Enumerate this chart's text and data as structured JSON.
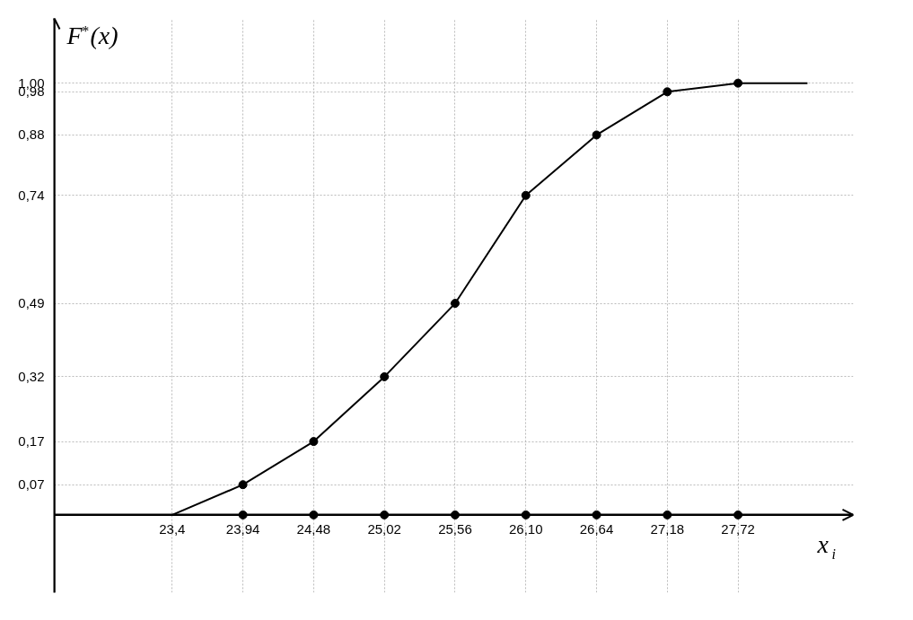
{
  "chart_data": {
    "type": "line",
    "xlabel": "x$_{i}$",
    "ylabel": "F$^{*}$(x)",
    "series": [
      {
        "color": "#000000",
        "marker": "none",
        "x": [
          22.5,
          23.4,
          23.94,
          24.48,
          25.02,
          25.56,
          26.1,
          26.64,
          27.18,
          27.72,
          28.25
        ],
        "values": [
          0,
          0,
          0.07,
          0.17,
          0.32,
          0.49,
          0.74,
          0.88,
          0.98,
          1.0,
          1.0
        ]
      },
      {
        "type": "scatter",
        "color": "#000000",
        "marker": "circle",
        "x": [
          23.94,
          24.48,
          25.02,
          25.56,
          26.1,
          26.64,
          27.18,
          27.72
        ],
        "values": [
          0.07,
          0.17,
          0.32,
          0.49,
          0.74,
          0.88,
          0.98,
          1.0
        ]
      },
      {
        "type": "scatter",
        "color": "#000000",
        "marker": "circle",
        "x": [
          23.94,
          24.48,
          25.02,
          25.56,
          26.1,
          26.64,
          27.18,
          27.72
        ],
        "values": [
          0,
          0,
          0,
          0,
          0,
          0,
          0,
          0
        ]
      }
    ],
    "xlim": [
      22.5,
      28.6
    ],
    "ylim": [
      -0.18,
      1.15
    ],
    "xticks": [
      {
        "value": 23.4,
        "label": "23,4"
      },
      {
        "value": 23.94,
        "label": "23,94"
      },
      {
        "value": 24.48,
        "label": "24,48"
      },
      {
        "value": 25.02,
        "label": "25,02"
      },
      {
        "value": 25.56,
        "label": "25,56"
      },
      {
        "value": 26.1,
        "label": "26,10"
      },
      {
        "value": 26.64,
        "label": "26,64"
      },
      {
        "value": 27.18,
        "label": "27,18"
      },
      {
        "value": 27.72,
        "label": "27,72"
      }
    ],
    "yticks": [
      {
        "value": 0.07,
        "label": "0,07"
      },
      {
        "value": 0.17,
        "label": "0,17"
      },
      {
        "value": 0.32,
        "label": "0,32"
      },
      {
        "value": 0.49,
        "label": "0,49"
      },
      {
        "value": 0.74,
        "label": "0,74"
      },
      {
        "value": 0.88,
        "label": "0,88"
      },
      {
        "value": 0.98,
        "label": "0,98"
      },
      {
        "value": 1.0,
        "label": "1,00"
      }
    ],
    "grid": true
  }
}
